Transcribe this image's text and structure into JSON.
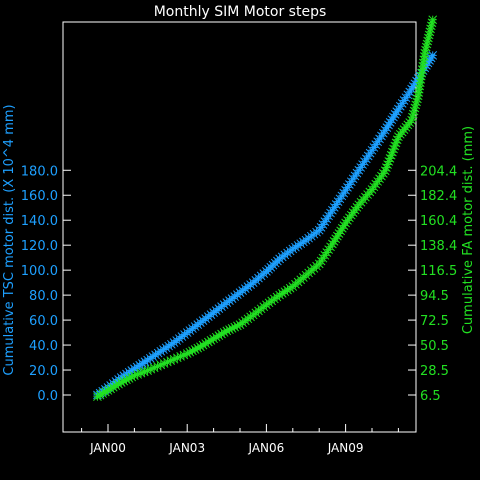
{
  "chart_data": {
    "type": "line",
    "title": "Monthly SIM Motor steps",
    "x_ticks": [
      "JAN00",
      "JAN03",
      "JAN06",
      "JAN09"
    ],
    "y_left": {
      "label": "Cumulative TSC motor dist. (X 10^4 mm)",
      "ticks": [
        "0.0",
        "20.0",
        "40.0",
        "60.0",
        "80.0",
        "100.0",
        "120.0",
        "140.0",
        "160.0",
        "180.0"
      ],
      "color": "#1ea0ff"
    },
    "y_right": {
      "label": "Cumulative FA motor dist. (mm)",
      "ticks": [
        "6.5",
        "28.5",
        "50.5",
        "72.5",
        "94.5",
        "116.5",
        "138.4",
        "160.4",
        "182.4",
        "204.4"
      ],
      "color": "#22e022"
    },
    "series": [
      {
        "axis": "left",
        "color": "#1ea0ff",
        "x": [
          1999.6,
          2000.0,
          2000.5,
          2001.0,
          2001.5,
          2002.0,
          2002.5,
          2003.0,
          2003.5,
          2004.0,
          2004.5,
          2005.0,
          2005.5,
          2006.0,
          2006.5,
          2007.0,
          2007.5,
          2008.0,
          2008.5,
          2009.0,
          2009.5,
          2010.0,
          2010.5,
          2011.0,
          2011.5,
          2012.0,
          2012.3
        ],
        "y": [
          0,
          6,
          14,
          21,
          28,
          35,
          42,
          50,
          58,
          66,
          74,
          82,
          90,
          99,
          109,
          117,
          124,
          132,
          148,
          164,
          180,
          196,
          212,
          229,
          245,
          262,
          272
        ]
      },
      {
        "axis": "right",
        "color": "#22e022",
        "x": [
          1999.6,
          2000.0,
          2000.5,
          2001.0,
          2001.5,
          2002.0,
          2002.5,
          2003.0,
          2003.5,
          2004.0,
          2004.5,
          2005.0,
          2005.5,
          2006.0,
          2006.5,
          2007.0,
          2007.5,
          2008.0,
          2008.5,
          2009.0,
          2009.5,
          2010.0,
          2010.5,
          2011.0,
          2011.5,
          2011.75,
          2012.0,
          2012.3
        ],
        "y": [
          5.0,
          10.5,
          17.5,
          23.5,
          28.0,
          33.0,
          38.0,
          43.0,
          49.0,
          56.0,
          63.0,
          68.5,
          77.0,
          86.0,
          94.5,
          102.0,
          112.0,
          122.0,
          139.5,
          158.0,
          174.0,
          187.5,
          204.0,
          234.0,
          248.5,
          270.0,
          307.5,
          337.0
        ]
      }
    ]
  }
}
